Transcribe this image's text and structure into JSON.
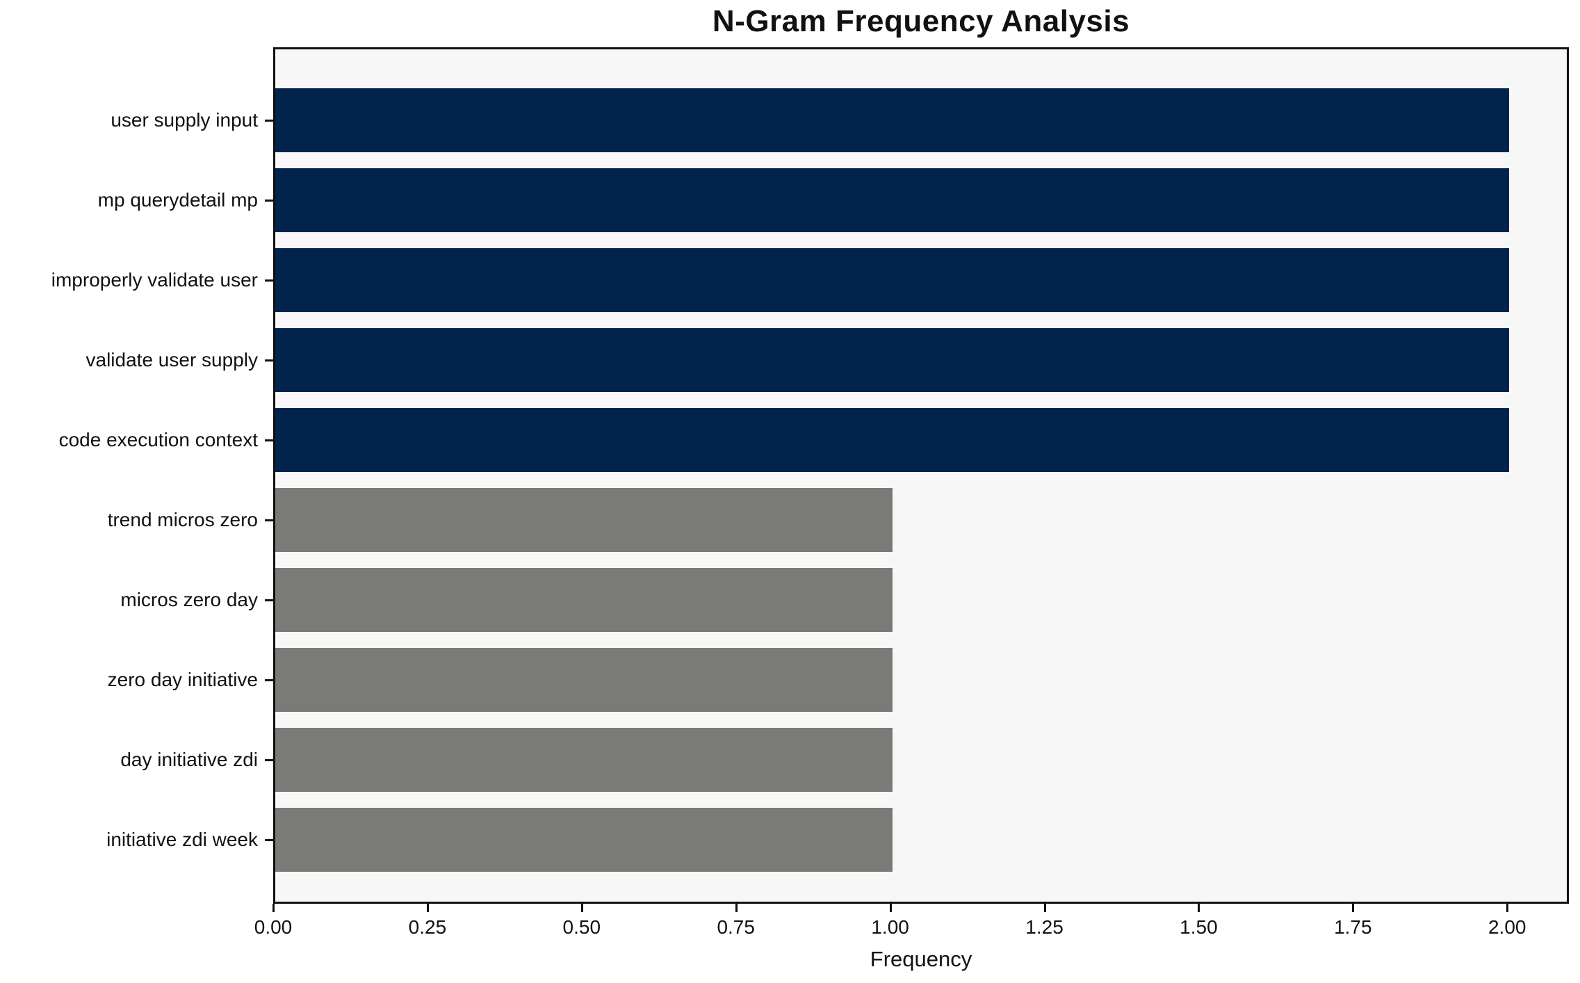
{
  "chart_data": {
    "type": "bar",
    "orientation": "horizontal",
    "title": "N-Gram Frequency Analysis",
    "xlabel": "Frequency",
    "ylabel": "",
    "categories": [
      "user supply input",
      "mp querydetail mp",
      "improperly validate user",
      "validate user supply",
      "code execution context",
      "trend micros zero",
      "micros zero day",
      "zero day initiative",
      "day initiative zdi",
      "initiative zdi week"
    ],
    "values": [
      2,
      2,
      2,
      2,
      2,
      1,
      1,
      1,
      1,
      1
    ],
    "bar_colors": [
      "#02244c",
      "#02244c",
      "#02244c",
      "#02244c",
      "#02244c",
      "#7a7a77",
      "#7a7a77",
      "#7a7a77",
      "#7a7a77",
      "#7a7a77"
    ],
    "x_ticks": [
      0.0,
      0.25,
      0.5,
      0.75,
      1.0,
      1.25,
      1.5,
      1.75,
      2.0
    ],
    "x_tick_labels": [
      "0.00",
      "0.25",
      "0.50",
      "0.75",
      "1.00",
      "1.25",
      "1.50",
      "1.75",
      "2.00"
    ],
    "xlim": [
      0,
      2.1
    ],
    "grid": false,
    "legend": null,
    "colors": {
      "high_frequency_bar": "#02244c",
      "low_frequency_bar": "#7a7a77",
      "plot_background": "#f7f7f7",
      "figure_background": "#ffffff",
      "spine": "#111111",
      "text": "#111111"
    }
  }
}
